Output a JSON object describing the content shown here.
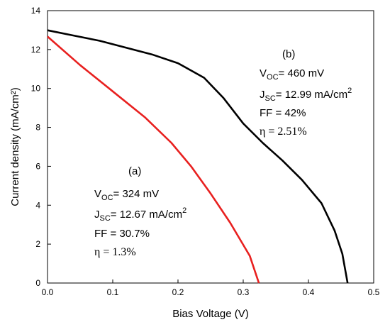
{
  "chart_data": {
    "type": "line",
    "title": "",
    "xlabel": "Bias Voltage (V)",
    "ylabel": "Current density (mA/cm²)",
    "xlim": [
      0,
      0.5
    ],
    "ylim": [
      0,
      14
    ],
    "x_ticks": [
      "0.0",
      "0.1",
      "0.2",
      "0.3",
      "0.4",
      "0.5"
    ],
    "y_ticks": [
      "0",
      "2",
      "4",
      "6",
      "8",
      "10",
      "12",
      "14"
    ],
    "grid": false,
    "legend": "none",
    "series": [
      {
        "color": "#e8201f",
        "points": [
          [
            0,
            12.67
          ],
          [
            0.05,
            11.2
          ],
          [
            0.1,
            9.85
          ],
          [
            0.15,
            8.5
          ],
          [
            0.19,
            7.2
          ],
          [
            0.22,
            6.0
          ],
          [
            0.25,
            4.6
          ],
          [
            0.28,
            3.1
          ],
          [
            0.31,
            1.4
          ],
          [
            0.324,
            0
          ]
        ]
      },
      {
        "color": "#000000",
        "points": [
          [
            0,
            12.99
          ],
          [
            0.04,
            12.72
          ],
          [
            0.08,
            12.45
          ],
          [
            0.12,
            12.1
          ],
          [
            0.16,
            11.75
          ],
          [
            0.2,
            11.3
          ],
          [
            0.24,
            10.55
          ],
          [
            0.27,
            9.5
          ],
          [
            0.3,
            8.2
          ],
          [
            0.33,
            7.2
          ],
          [
            0.36,
            6.3
          ],
          [
            0.39,
            5.3
          ],
          [
            0.42,
            4.1
          ],
          [
            0.44,
            2.7
          ],
          [
            0.452,
            1.5
          ],
          [
            0.46,
            0
          ]
        ]
      }
    ],
    "annotations": {
      "a": {
        "tag": "(a)",
        "voc_prefix": "V",
        "voc_sub": "OC",
        "voc_value": "= 324 mV",
        "jsc_prefix": "J",
        "jsc_sub": "SC",
        "jsc_value": "= 12.67 mA/cm",
        "jsc_sup": "2",
        "ff": "FF = 30.7%",
        "eta": "η = 1.3%"
      },
      "b": {
        "tag": "(b)",
        "voc_prefix": "V",
        "voc_sub": "OC",
        "voc_value": "= 460 mV",
        "jsc_prefix": "J",
        "jsc_sub": "SC",
        "jsc_value": "= 12.99 mA/cm",
        "jsc_sup": "2",
        "ff": "FF = 42%",
        "eta": "η = 2.51%"
      }
    }
  }
}
